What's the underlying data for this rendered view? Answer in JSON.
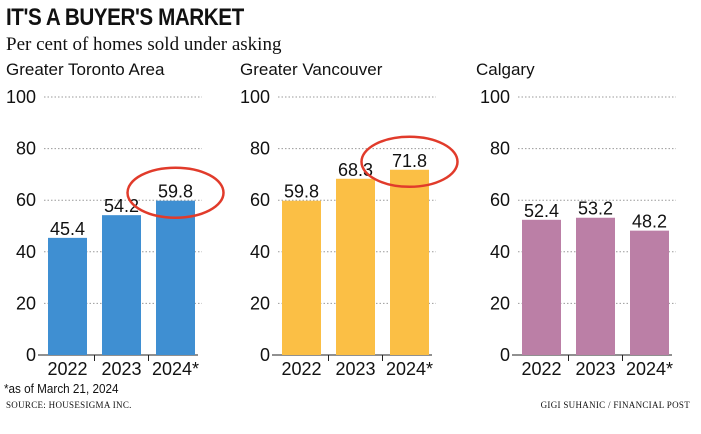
{
  "header": {
    "title": "IT'S A BUYER'S MARKET",
    "subtitle": "Per cent of homes sold under asking"
  },
  "footer": {
    "footnote": "*as of March 21, 2024",
    "source": "SOURCE: HOUSESIGMA INC.",
    "credit": "GIGI SUHANIC / FINANCIAL POST"
  },
  "colors": {
    "toronto": "#3f8fd2",
    "vancouver": "#fbbf45",
    "calgary": "#bb7fa6",
    "highlight_circle": "#e13b2b",
    "gridline": "#9a9a9a"
  },
  "chart_data": [
    {
      "type": "bar",
      "title": "Greater Toronto Area",
      "categories": [
        "2022",
        "2023",
        "2024*"
      ],
      "values": [
        45.4,
        54.2,
        59.8
      ],
      "value_labels": [
        "45.4",
        "54.2",
        "59.8"
      ],
      "ylim": [
        0,
        100
      ],
      "yticks": [
        "0",
        "20",
        "40",
        "60",
        "80",
        "100"
      ],
      "grid": "dotted horizontal",
      "color": "#3f8fd2",
      "highlight_index": 2
    },
    {
      "type": "bar",
      "title": "Greater Vancouver",
      "categories": [
        "2022",
        "2023",
        "2024*"
      ],
      "values": [
        59.8,
        68.3,
        71.8
      ],
      "value_labels": [
        "59.8",
        "68.3",
        "71.8"
      ],
      "ylim": [
        0,
        100
      ],
      "yticks": [
        "0",
        "20",
        "40",
        "60",
        "80",
        "100"
      ],
      "grid": "dotted horizontal",
      "color": "#fbbf45",
      "highlight_index": 2
    },
    {
      "type": "bar",
      "title": "Calgary",
      "categories": [
        "2022",
        "2023",
        "2024*"
      ],
      "values": [
        52.4,
        53.2,
        48.2
      ],
      "value_labels": [
        "52.4",
        "53.2",
        "48.2"
      ],
      "ylim": [
        0,
        100
      ],
      "yticks": [
        "0",
        "20",
        "40",
        "60",
        "80",
        "100"
      ],
      "grid": "dotted horizontal",
      "color": "#bb7fa6",
      "highlight_index": null
    }
  ]
}
